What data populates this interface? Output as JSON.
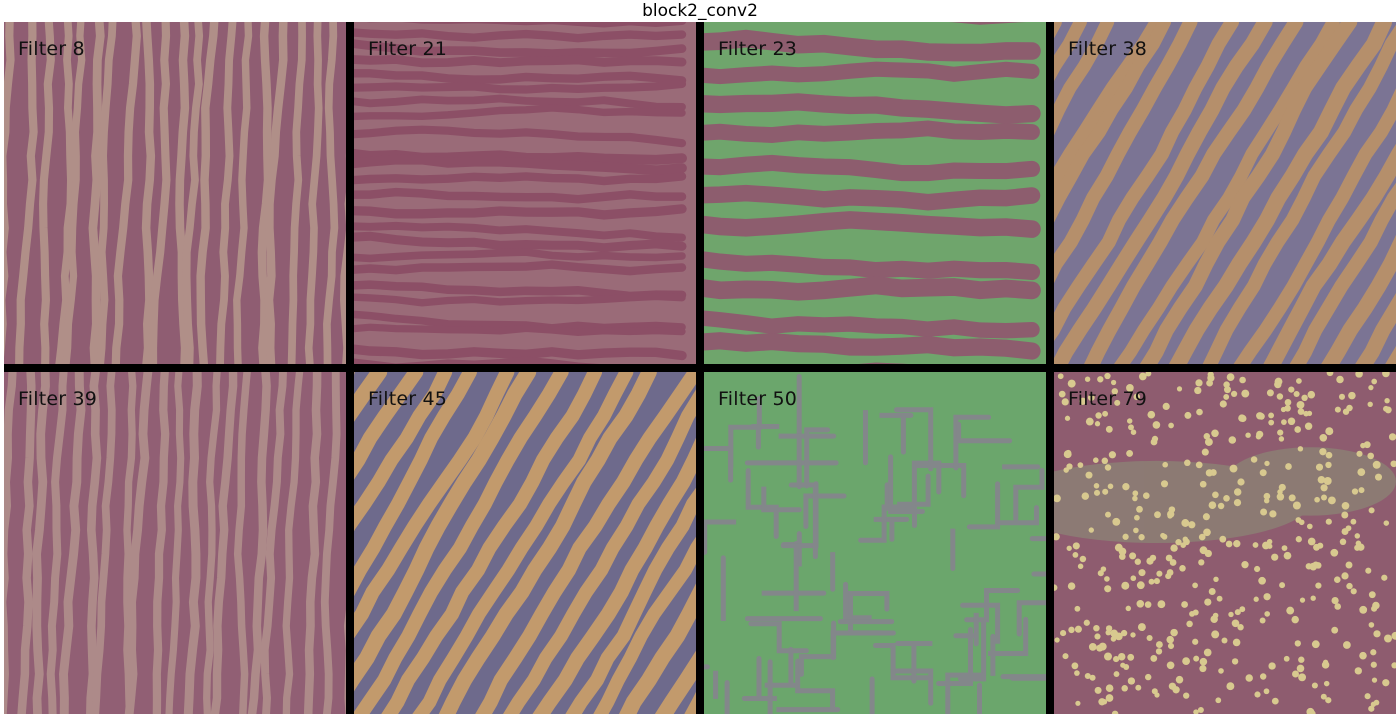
{
  "title": "block2_conv2",
  "filters": [
    {
      "label": "Filter 8",
      "pattern": "vertical-stripes",
      "base": "#8f5d72",
      "stripe": "#b08f88"
    },
    {
      "label": "Filter 21",
      "pattern": "horizontal-stripes",
      "base": "#9a6b78",
      "stripe": "#8c4f66"
    },
    {
      "label": "Filter 23",
      "pattern": "horizontal-bands",
      "base": "#6fa56c",
      "stripe": "#8d5d6e"
    },
    {
      "label": "Filter 38",
      "pattern": "diagonal-stripes",
      "base": "#7b7494",
      "stripe": "#b58f6b"
    },
    {
      "label": "Filter 39",
      "pattern": "vertical-stripes",
      "base": "#915f74",
      "stripe": "#ad8a89"
    },
    {
      "label": "Filter 45",
      "pattern": "diagonal-stripes",
      "base": "#6e6a8c",
      "stripe": "#c29a6c"
    },
    {
      "label": "Filter 50",
      "pattern": "maze",
      "base": "#6ba66c",
      "stripe": "#83878a"
    },
    {
      "label": "Filter 79",
      "pattern": "dots",
      "base": "#8e5c6f",
      "stripe": "#d8c98f"
    }
  ]
}
